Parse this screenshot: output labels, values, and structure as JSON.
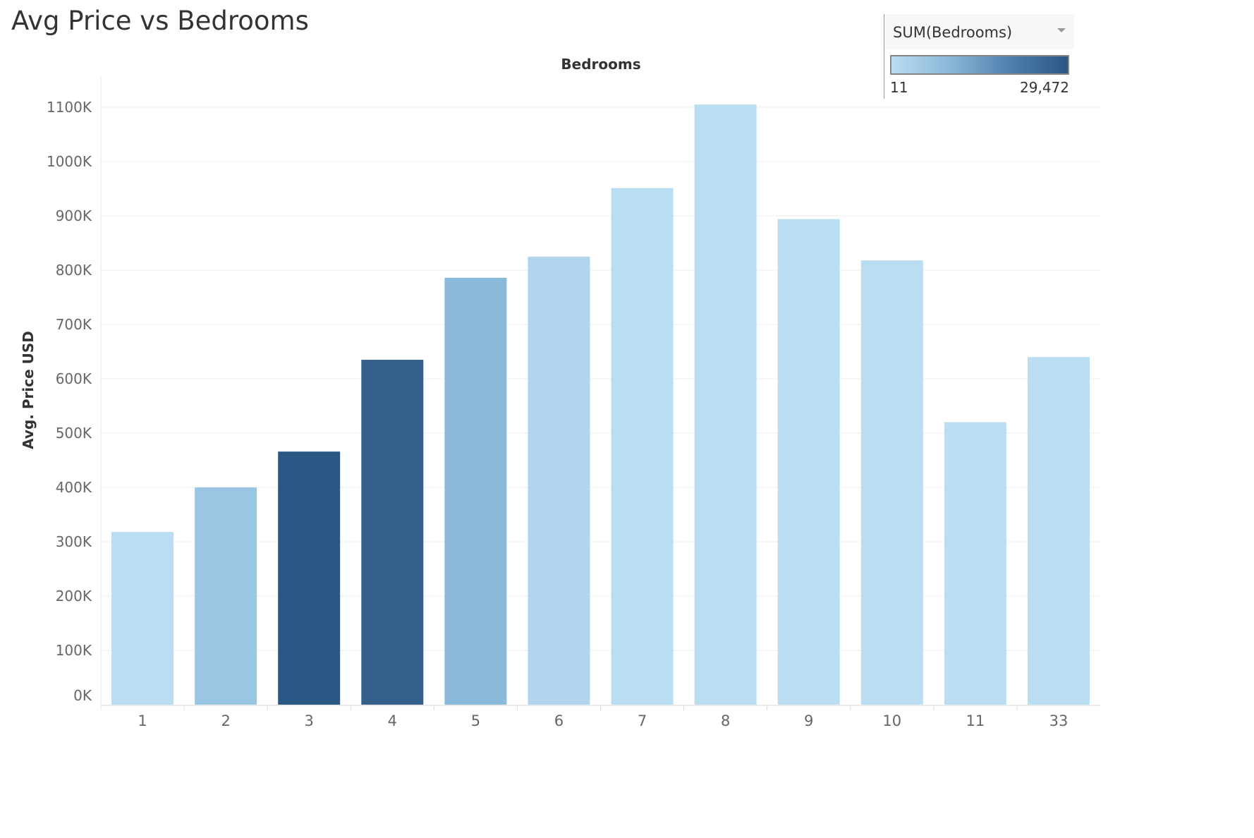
{
  "title": "Avg Price vs Bedrooms",
  "legend": {
    "field": "SUM(Bedrooms)",
    "min_label": "11",
    "max_label": "29,472",
    "colors": [
      "#b9ddf1",
      "#2a5783"
    ]
  },
  "chart_data": {
    "type": "bar",
    "title": "Avg Price vs Bedrooms",
    "xlabel": "Bedrooms",
    "ylabel": "Avg. Price USD",
    "categories": [
      "1",
      "2",
      "3",
      "4",
      "5",
      "6",
      "7",
      "8",
      "9",
      "10",
      "11",
      "33"
    ],
    "values": [
      318000,
      400000,
      466000,
      635000,
      786000,
      825000,
      951000,
      1105000,
      894000,
      818000,
      520000,
      640000
    ],
    "colors": [
      "#b9ddf1",
      "#9ac5e3",
      "#2a5783",
      "#35608c",
      "#8ab9da",
      "#b1d5ee",
      "#b9ddf1",
      "#b9ddf1",
      "#b9ddf1",
      "#b9ddf1",
      "#b9ddf1",
      "#b9ddf1"
    ],
    "yticks": [
      "0K",
      "100K",
      "200K",
      "300K",
      "400K",
      "500K",
      "600K",
      "700K",
      "800K",
      "900K",
      "1000K",
      "1100K"
    ],
    "ylim": [
      0,
      1100000
    ],
    "grid": true
  }
}
